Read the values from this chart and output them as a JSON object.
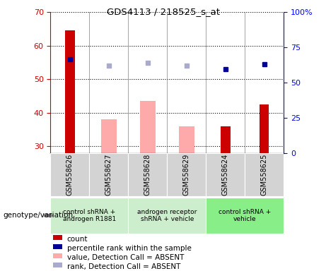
{
  "title": "GDS4113 / 218525_s_at",
  "samples": [
    "GSM558626",
    "GSM558627",
    "GSM558628",
    "GSM558629",
    "GSM558624",
    "GSM558625"
  ],
  "count_values": [
    64.5,
    null,
    null,
    null,
    36.0,
    42.5
  ],
  "count_color": "#cc0000",
  "value_absent": [
    null,
    38.0,
    43.5,
    36.0,
    null,
    null
  ],
  "value_absent_color": "#ffaaaa",
  "rank_absent": [
    null,
    54.0,
    55.0,
    54.0,
    null,
    null
  ],
  "rank_absent_color": "#aaaacc",
  "percentile_present": [
    56.0,
    null,
    null,
    null,
    53.0,
    54.5
  ],
  "percentile_present_color": "#000099",
  "ylim_left": [
    28,
    70
  ],
  "ylim_right": [
    0,
    100
  ],
  "yticks_left": [
    30,
    40,
    50,
    60,
    70
  ],
  "yticks_right": [
    0,
    25,
    50,
    75,
    100
  ],
  "yticklabels_right": [
    "0",
    "25",
    "50",
    "75",
    "100%"
  ],
  "group_info": [
    {
      "start": 0,
      "end": 1,
      "color": "#cceecc",
      "label": "control shRNA +\nandrogen R1881"
    },
    {
      "start": 2,
      "end": 3,
      "color": "#cceecc",
      "label": "androgen receptor\nshRNA + vehicle"
    },
    {
      "start": 4,
      "end": 5,
      "color": "#88ee88",
      "label": "control shRNA +\nvehicle"
    }
  ],
  "sample_box_color": "#d3d3d3",
  "legend_items": [
    {
      "label": "count",
      "color": "#cc0000"
    },
    {
      "label": "percentile rank within the sample",
      "color": "#000099"
    },
    {
      "label": "value, Detection Call = ABSENT",
      "color": "#ffaaaa"
    },
    {
      "label": "rank, Detection Call = ABSENT",
      "color": "#aaaacc"
    }
  ]
}
